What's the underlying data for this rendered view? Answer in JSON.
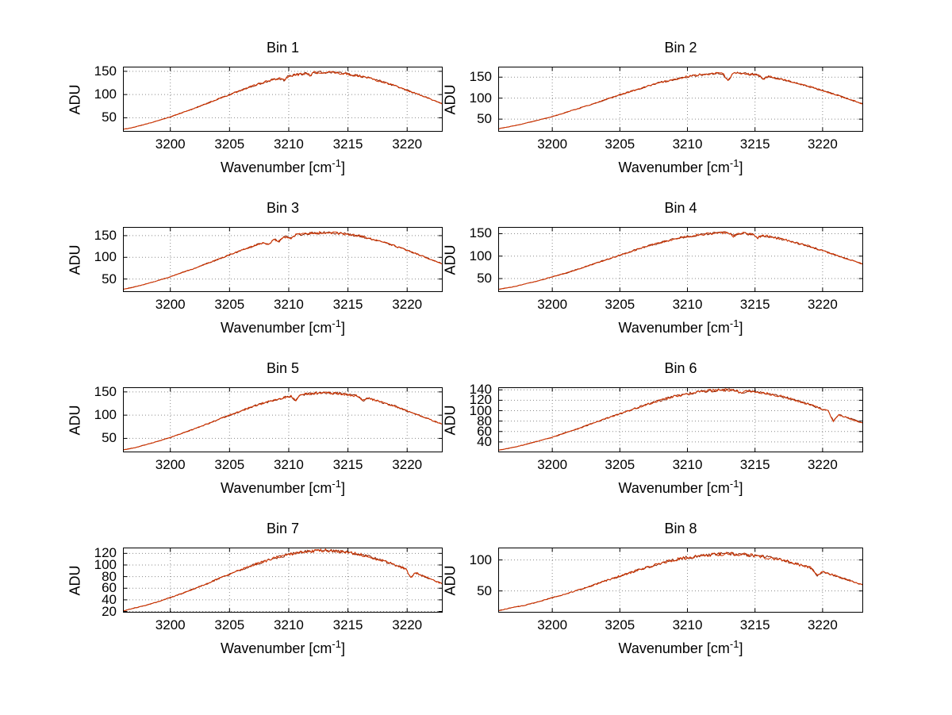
{
  "figure": {
    "background": "#ffffff"
  },
  "colors": {
    "trace": "#d23500",
    "trace_under": "#8b2000",
    "grid": "#8a8a8a",
    "axis": "#000000"
  },
  "axis": {
    "ylabel": "ADU",
    "xlabel_prefix": "Wavenumber [cm",
    "xlabel_sup": "-1",
    "xlabel_suffix": "]"
  },
  "chart_data": {
    "type": "line",
    "title": "",
    "xlabel": "Wavenumber [cm^-1]",
    "ylabel": "ADU",
    "grid": "dotted",
    "xlim": [
      3196,
      3223
    ],
    "xticks": [
      3200,
      3205,
      3210,
      3215,
      3220
    ],
    "x": [
      3196,
      3197,
      3198,
      3199,
      3200,
      3201,
      3202,
      3203,
      3204,
      3205,
      3206,
      3207,
      3208,
      3209,
      3210,
      3211,
      3212,
      3213,
      3214,
      3215,
      3216,
      3217,
      3218,
      3219,
      3220,
      3221,
      3222,
      3223
    ],
    "series": [
      {
        "name": "Bin 1",
        "ylim": [
          20,
          160
        ],
        "yticks": [
          50,
          100,
          150
        ],
        "values": [
          25,
          30,
          37,
          44,
          52,
          61,
          70,
          80,
          90,
          100,
          109,
          119,
          127,
          134,
          140,
          144,
          147,
          148,
          147,
          144,
          140,
          134,
          127,
          119,
          109,
          100,
          90,
          80
        ],
        "dips": [
          {
            "x": 3209.6,
            "depth": 7
          },
          {
            "x": 3211.8,
            "depth": 5
          }
        ]
      },
      {
        "name": "Bin 2",
        "ylim": [
          20,
          175
        ],
        "yticks": [
          50,
          100,
          150
        ],
        "values": [
          27,
          33,
          40,
          48,
          56,
          66,
          76,
          86,
          97,
          108,
          118,
          128,
          137,
          145,
          151,
          156,
          159,
          160,
          159,
          156,
          151,
          145,
          137,
          128,
          118,
          108,
          97,
          86
        ],
        "dips": [
          {
            "x": 3213.0,
            "depth": 18
          },
          {
            "x": 3215.6,
            "depth": 7
          }
        ]
      },
      {
        "name": "Bin 3",
        "ylim": [
          20,
          170
        ],
        "yticks": [
          50,
          100,
          150
        ],
        "values": [
          26,
          32,
          39,
          47,
          55,
          65,
          74,
          85,
          95,
          106,
          116,
          126,
          135,
          142,
          149,
          153,
          156,
          157,
          156,
          153,
          149,
          142,
          135,
          126,
          116,
          106,
          95,
          85
        ],
        "dips": [
          {
            "x": 3208.3,
            "depth": 8
          },
          {
            "x": 3209.2,
            "depth": 6
          },
          {
            "x": 3210.2,
            "depth": 6
          }
        ]
      },
      {
        "name": "Bin 4",
        "ylim": [
          20,
          165
        ],
        "yticks": [
          50,
          100,
          150
        ],
        "values": [
          26,
          31,
          38,
          45,
          54,
          62,
          72,
          82,
          92,
          102,
          112,
          122,
          130,
          138,
          144,
          148,
          151,
          152,
          151,
          148,
          144,
          138,
          130,
          122,
          112,
          102,
          92,
          82
        ],
        "dips": [
          {
            "x": 3213.4,
            "depth": 7
          },
          {
            "x": 3215.2,
            "depth": 6
          }
        ]
      },
      {
        "name": "Bin 5",
        "ylim": [
          20,
          160
        ],
        "yticks": [
          50,
          100,
          150
        ],
        "values": [
          25,
          30,
          37,
          44,
          52,
          61,
          70,
          80,
          90,
          100,
          109,
          119,
          127,
          134,
          140,
          144,
          147,
          148,
          147,
          144,
          140,
          134,
          127,
          119,
          109,
          100,
          90,
          80
        ],
        "dips": [
          {
            "x": 3210.6,
            "depth": 12
          },
          {
            "x": 3216.3,
            "depth": 6
          }
        ]
      },
      {
        "name": "Bin 6",
        "ylim": [
          20,
          145
        ],
        "yticks": [
          40,
          60,
          80,
          100,
          120,
          140
        ],
        "values": [
          24,
          29,
          35,
          42,
          49,
          58,
          66,
          76,
          85,
          94,
          103,
          112,
          120,
          127,
          132,
          137,
          139,
          140,
          139,
          137,
          132,
          127,
          120,
          112,
          103,
          94,
          85,
          76
        ],
        "dips": [
          {
            "x": 3220.8,
            "depth": 16
          },
          {
            "x": 3214.0,
            "depth": 6
          }
        ]
      },
      {
        "name": "Bin 7",
        "ylim": [
          18,
          130
        ],
        "yticks": [
          20,
          40,
          60,
          80,
          100,
          120
        ],
        "values": [
          21,
          26,
          31,
          37,
          44,
          51,
          59,
          67,
          76,
          84,
          92,
          100,
          107,
          113,
          118,
          122,
          124,
          125,
          124,
          122,
          118,
          113,
          107,
          100,
          92,
          84,
          76,
          67
        ],
        "dips": [
          {
            "x": 3220.3,
            "depth": 12
          }
        ]
      },
      {
        "name": "Bin 8",
        "ylim": [
          15,
          120
        ],
        "yticks": [
          50,
          100
        ],
        "values": [
          18,
          23,
          27,
          33,
          39,
          45,
          52,
          59,
          67,
          74,
          81,
          88,
          94,
          100,
          104,
          107,
          109,
          110,
          109,
          107,
          104,
          100,
          94,
          88,
          81,
          74,
          67,
          59
        ],
        "dips": [
          {
            "x": 3219.6,
            "depth": 9
          }
        ]
      }
    ]
  }
}
